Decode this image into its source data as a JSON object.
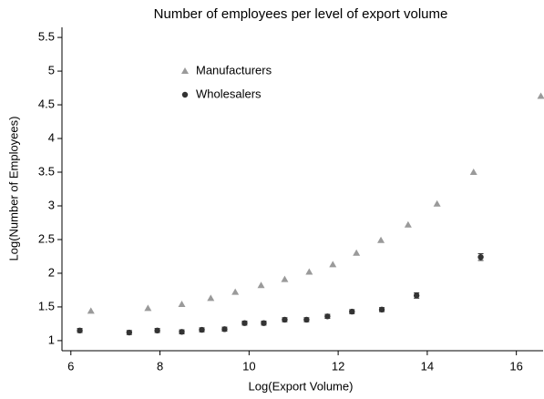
{
  "chart_data": {
    "type": "scatter",
    "title": "Number of employees per level of export volume",
    "x_label": "Log(Export Volume)",
    "y_label": "Log(Number of Employees)",
    "xlim": [
      5.8,
      16.6
    ],
    "ylim": [
      0.85,
      5.65
    ],
    "xticks": [
      6,
      8,
      10,
      12,
      14,
      16
    ],
    "yticks": [
      1,
      1.5,
      2,
      2.5,
      3,
      3.5,
      4,
      4.5,
      5,
      5.5
    ],
    "legend": "upper left",
    "series": [
      {
        "name": "Manufacturers",
        "color": "#9a9a9a",
        "marker": "triangle",
        "x": [
          6.45,
          7.73,
          8.49,
          9.14,
          9.69,
          10.27,
          10.8,
          11.35,
          11.88,
          12.41,
          12.96,
          13.57,
          14.22,
          15.04,
          16.55
        ],
        "values": [
          1.44,
          1.48,
          1.54,
          1.63,
          1.72,
          1.82,
          1.91,
          2.02,
          2.13,
          2.3,
          2.49,
          2.72,
          3.03,
          3.5,
          4.63
        ]
      },
      {
        "name": "Wholesalers",
        "color": "#333333",
        "marker": "circle",
        "x": [
          6.2,
          7.31,
          7.94,
          8.49,
          8.94,
          9.45,
          9.9,
          10.33,
          10.8,
          11.29,
          11.76,
          12.31,
          12.98,
          13.76,
          15.2
        ],
        "values": [
          1.15,
          1.12,
          1.15,
          1.13,
          1.16,
          1.17,
          1.26,
          1.26,
          1.31,
          1.31,
          1.36,
          1.43,
          1.46,
          1.67,
          2.24
        ],
        "errors": [
          0.03,
          0.03,
          0.03,
          0.03,
          0.03,
          0.03,
          0.03,
          0.03,
          0.03,
          0.03,
          0.03,
          0.03,
          0.03,
          0.04,
          0.05
        ]
      }
    ]
  }
}
